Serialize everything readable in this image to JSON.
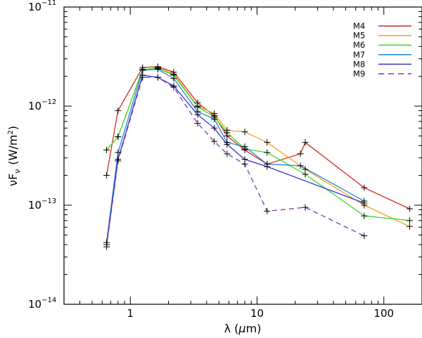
{
  "chart_data": {
    "type": "line",
    "xscale": "log",
    "yscale": "log",
    "xlim": [
      0.3,
      200
    ],
    "ylim": [
      1e-14,
      1e-11
    ],
    "xlabel": {
      "main": "λ (",
      "unit": "μ",
      "tail": "m)"
    },
    "ylabel": {
      "nu": "ν",
      "F": "F",
      "sub": "ν",
      "units": "(W/m",
      "sup": "2",
      "close": ")"
    },
    "xticks": [
      {
        "value": 1,
        "label": "1"
      },
      {
        "value": 10,
        "label": "10"
      },
      {
        "value": 100,
        "label": "100"
      }
    ],
    "yticks": [
      {
        "value": 1e-14,
        "base": "10",
        "exp": "−14"
      },
      {
        "value": 1e-13,
        "base": "10",
        "exp": "−13"
      },
      {
        "value": 1e-12,
        "base": "10",
        "exp": "−12"
      },
      {
        "value": 1e-11,
        "base": "10",
        "exp": "−11"
      }
    ],
    "legend_position": "top-right",
    "series": [
      {
        "name": "M4",
        "color": "#d42a20",
        "dash": false,
        "x": [
          0.65,
          0.8,
          1.25,
          1.65,
          2.2,
          3.4,
          4.6,
          5.8,
          8.0,
          12,
          22,
          24,
          70,
          160
        ],
        "y": [
          2e-13,
          9e-13,
          2.45e-12,
          2.5e-12,
          2.2e-12,
          1.08e-12,
          8e-13,
          5e-13,
          3.6e-13,
          2.6e-13,
          3.3e-13,
          4.3e-13,
          1.5e-13,
          9.2e-14
        ]
      },
      {
        "name": "M5",
        "color": "#f2a020",
        "dash": false,
        "x": [
          0.65,
          0.8,
          1.25,
          1.65,
          2.2,
          3.4,
          4.6,
          5.8,
          8.0,
          12,
          24,
          70,
          160
        ],
        "y": [
          3.6e-13,
          4.9e-13,
          2.3e-12,
          2.45e-12,
          2.1e-12,
          1e-12,
          8.4e-13,
          5.7e-13,
          5.5e-13,
          4.3e-13,
          2.3e-13,
          1e-13,
          6.1e-14
        ]
      },
      {
        "name": "M6",
        "color": "#3ddb2a",
        "dash": false,
        "x": [
          0.65,
          0.8,
          1.25,
          1.65,
          2.2,
          3.4,
          4.6,
          5.8,
          8.0,
          12,
          24,
          70,
          160
        ],
        "y": [
          3.6e-13,
          4.9e-13,
          2.35e-12,
          2.4e-12,
          2.05e-12,
          9.8e-13,
          7.8e-13,
          5.4e-13,
          3.7e-13,
          3.4e-13,
          2.05e-13,
          7.8e-14,
          7e-14
        ]
      },
      {
        "name": "M7",
        "color": "#1e8ad6",
        "dash": false,
        "x": [
          0.65,
          0.8,
          1.25,
          1.65,
          2.2,
          3.4,
          4.6,
          5.8,
          8.0,
          12,
          22,
          70
        ],
        "y": [
          4.2e-14,
          3.4e-13,
          2.3e-12,
          2.35e-12,
          1.9e-12,
          8.8e-13,
          7.4e-13,
          4.3e-13,
          3.9e-13,
          2.6e-13,
          2.5e-13,
          1.1e-13
        ]
      },
      {
        "name": "M8",
        "color": "#3a2fcf",
        "dash": false,
        "x": [
          0.65,
          0.8,
          1.25,
          1.65,
          2.2,
          3.4,
          4.6,
          5.8,
          8.0,
          12,
          70
        ],
        "y": [
          4e-14,
          2.9e-13,
          2.05e-12,
          1.95e-12,
          1.6e-12,
          8.2e-13,
          6e-13,
          4.1e-13,
          2.9e-13,
          2.45e-13,
          1.05e-13
        ]
      },
      {
        "name": "M9",
        "color": "#7a35b8",
        "dash": true,
        "x": [
          0.65,
          0.8,
          1.25,
          1.65,
          2.2,
          3.4,
          4.6,
          5.8,
          8.0,
          12,
          24,
          70
        ],
        "y": [
          3.8e-14,
          2.8e-13,
          1.95e-12,
          1.95e-12,
          1.55e-12,
          6.7e-13,
          4.4e-13,
          3.3e-13,
          2.6e-13,
          8.7e-14,
          9.5e-14,
          4.9e-14
        ]
      }
    ]
  }
}
